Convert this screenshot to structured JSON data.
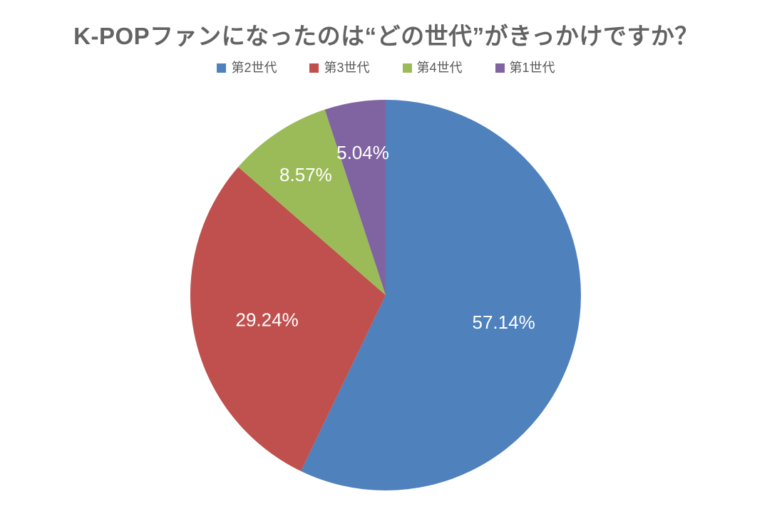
{
  "header": {
    "title": "K-POPファンになったのは“どの世代”がきっかけですか？",
    "title_color": "#636363"
  },
  "legend": {
    "text_color": "#595959",
    "position": "top"
  },
  "chart_data": {
    "type": "pie",
    "title": "K-POPファンになったのは“どの世代”がきっかけですか？",
    "start_angle_deg": 0,
    "direction": "clockwise",
    "legend_position": "top",
    "label_text_color": "#ffffff",
    "background_color": "#ffffff",
    "series": [
      {
        "name": "第2世代",
        "value": 57.14,
        "label": "57.14%",
        "color": "#4f81bd"
      },
      {
        "name": "第3世代",
        "value": 29.24,
        "label": "29.24%",
        "color": "#c0504d"
      },
      {
        "name": "第4世代",
        "value": 8.57,
        "label": "8.57%",
        "color": "#9bbb59"
      },
      {
        "name": "第1世代",
        "value": 5.04,
        "label": "5.04%",
        "color": "#8064a2"
      }
    ]
  }
}
